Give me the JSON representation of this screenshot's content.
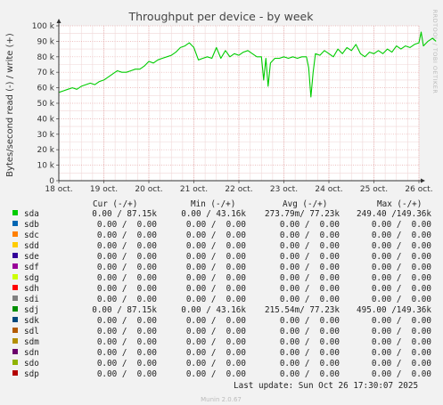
{
  "chart_data": {
    "type": "line",
    "title": "Throughput per device - by week",
    "ylabel": "Bytes/second read (-) / write (+)",
    "watermark": "RRDTOOL / TOBI OETIKER",
    "ylim": [
      0,
      100000
    ],
    "y_ticks": [
      {
        "value": 0,
        "label": "0"
      },
      {
        "value": 10000,
        "label": "10 k"
      },
      {
        "value": 20000,
        "label": "20 k"
      },
      {
        "value": 30000,
        "label": "30 k"
      },
      {
        "value": 40000,
        "label": "40 k"
      },
      {
        "value": 50000,
        "label": "50 k"
      },
      {
        "value": 60000,
        "label": "60 k"
      },
      {
        "value": 70000,
        "label": "70 k"
      },
      {
        "value": 80000,
        "label": "80 k"
      },
      {
        "value": 90000,
        "label": "90 k"
      },
      {
        "value": 100000,
        "label": "100 k"
      }
    ],
    "x_range": [
      0,
      8.4
    ],
    "x_ticks": [
      {
        "value": 0,
        "label": "18 oct."
      },
      {
        "value": 1,
        "label": "19 oct."
      },
      {
        "value": 2,
        "label": "20 oct."
      },
      {
        "value": 3,
        "label": "21 oct."
      },
      {
        "value": 4,
        "label": "22 oct."
      },
      {
        "value": 5,
        "label": "23 oct."
      },
      {
        "value": 6,
        "label": "24 oct."
      },
      {
        "value": 7,
        "label": "25 oct."
      },
      {
        "value": 8,
        "label": "26 oct."
      }
    ],
    "grid": true,
    "series": [
      {
        "name": "sda",
        "color": "#00cc00",
        "points": [
          [
            0.0,
            57000
          ],
          [
            0.1,
            58000
          ],
          [
            0.2,
            59000
          ],
          [
            0.3,
            60000
          ],
          [
            0.4,
            59000
          ],
          [
            0.5,
            61000
          ],
          [
            0.6,
            62000
          ],
          [
            0.7,
            63000
          ],
          [
            0.8,
            62000
          ],
          [
            0.9,
            64000
          ],
          [
            1.0,
            65000
          ],
          [
            1.1,
            67000
          ],
          [
            1.2,
            69000
          ],
          [
            1.3,
            71000
          ],
          [
            1.4,
            70000
          ],
          [
            1.5,
            70000
          ],
          [
            1.6,
            71000
          ],
          [
            1.7,
            72000
          ],
          [
            1.8,
            72000
          ],
          [
            1.9,
            74000
          ],
          [
            2.0,
            77000
          ],
          [
            2.1,
            76000
          ],
          [
            2.2,
            78000
          ],
          [
            2.3,
            79000
          ],
          [
            2.4,
            80000
          ],
          [
            2.5,
            81000
          ],
          [
            2.6,
            83000
          ],
          [
            2.7,
            86000
          ],
          [
            2.8,
            87000
          ],
          [
            2.9,
            89000
          ],
          [
            3.0,
            86000
          ],
          [
            3.1,
            78000
          ],
          [
            3.2,
            79000
          ],
          [
            3.3,
            80000
          ],
          [
            3.4,
            79000
          ],
          [
            3.5,
            86000
          ],
          [
            3.6,
            79000
          ],
          [
            3.7,
            84000
          ],
          [
            3.8,
            80000
          ],
          [
            3.9,
            82000
          ],
          [
            4.0,
            81000
          ],
          [
            4.1,
            83000
          ],
          [
            4.2,
            84000
          ],
          [
            4.3,
            82000
          ],
          [
            4.4,
            80000
          ],
          [
            4.5,
            80000
          ],
          [
            4.55,
            65000
          ],
          [
            4.6,
            79000
          ],
          [
            4.65,
            61000
          ],
          [
            4.7,
            76000
          ],
          [
            4.8,
            79000
          ],
          [
            4.9,
            79000
          ],
          [
            5.0,
            80000
          ],
          [
            5.1,
            79000
          ],
          [
            5.2,
            80000
          ],
          [
            5.3,
            79000
          ],
          [
            5.4,
            80000
          ],
          [
            5.5,
            80000
          ],
          [
            5.55,
            73000
          ],
          [
            5.6,
            54000
          ],
          [
            5.65,
            70000
          ],
          [
            5.7,
            82000
          ],
          [
            5.8,
            81000
          ],
          [
            5.9,
            84000
          ],
          [
            6.0,
            82000
          ],
          [
            6.1,
            80000
          ],
          [
            6.2,
            85000
          ],
          [
            6.3,
            82000
          ],
          [
            6.4,
            86000
          ],
          [
            6.5,
            84000
          ],
          [
            6.6,
            88000
          ],
          [
            6.7,
            82000
          ],
          [
            6.8,
            80000
          ],
          [
            6.9,
            83000
          ],
          [
            7.0,
            82000
          ],
          [
            7.1,
            84000
          ],
          [
            7.2,
            82000
          ],
          [
            7.3,
            85000
          ],
          [
            7.4,
            83000
          ],
          [
            7.5,
            87000
          ],
          [
            7.6,
            85000
          ],
          [
            7.7,
            87000
          ],
          [
            7.8,
            86000
          ],
          [
            7.9,
            88000
          ],
          [
            8.0,
            89000
          ],
          [
            8.05,
            96000
          ],
          [
            8.1,
            87000
          ],
          [
            8.2,
            90000
          ],
          [
            8.3,
            92000
          ],
          [
            8.38,
            90000
          ]
        ]
      }
    ]
  },
  "legend": {
    "headers": {
      "cur": "Cur (-/+)",
      "min": "Min (-/+)",
      "avg": "Avg (-/+)",
      "max": "Max (-/+)"
    },
    "rows": [
      {
        "name": "sda",
        "color": "#00cc00",
        "cur": "0.00 / 87.15k",
        "min": "0.00 / 43.16k",
        "avg": "273.79m/ 77.23k",
        "max": "249.40 /149.36k"
      },
      {
        "name": "sdb",
        "color": "#0066b3",
        "cur": "0.00 /  0.00",
        "min": "0.00 /  0.00",
        "avg": "0.00 /  0.00",
        "max": "0.00 /  0.00"
      },
      {
        "name": "sdc",
        "color": "#ff8000",
        "cur": "0.00 /  0.00",
        "min": "0.00 /  0.00",
        "avg": "0.00 /  0.00",
        "max": "0.00 /  0.00"
      },
      {
        "name": "sdd",
        "color": "#ffcc00",
        "cur": "0.00 /  0.00",
        "min": "0.00 /  0.00",
        "avg": "0.00 /  0.00",
        "max": "0.00 /  0.00"
      },
      {
        "name": "sde",
        "color": "#330099",
        "cur": "0.00 /  0.00",
        "min": "0.00 /  0.00",
        "avg": "0.00 /  0.00",
        "max": "0.00 /  0.00"
      },
      {
        "name": "sdf",
        "color": "#990099",
        "cur": "0.00 /  0.00",
        "min": "0.00 /  0.00",
        "avg": "0.00 /  0.00",
        "max": "0.00 /  0.00"
      },
      {
        "name": "sdg",
        "color": "#ccff00",
        "cur": "0.00 /  0.00",
        "min": "0.00 /  0.00",
        "avg": "0.00 /  0.00",
        "max": "0.00 /  0.00"
      },
      {
        "name": "sdh",
        "color": "#ff0000",
        "cur": "0.00 /  0.00",
        "min": "0.00 /  0.00",
        "avg": "0.00 /  0.00",
        "max": "0.00 /  0.00"
      },
      {
        "name": "sdi",
        "color": "#808080",
        "cur": "0.00 /  0.00",
        "min": "0.00 /  0.00",
        "avg": "0.00 /  0.00",
        "max": "0.00 /  0.00"
      },
      {
        "name": "sdj",
        "color": "#008f00",
        "cur": "0.00 / 87.15k",
        "min": "0.00 / 43.16k",
        "avg": "215.54m/ 77.23k",
        "max": "495.00 /149.36k"
      },
      {
        "name": "sdk",
        "color": "#00487d",
        "cur": "0.00 /  0.00",
        "min": "0.00 /  0.00",
        "avg": "0.00 /  0.00",
        "max": "0.00 /  0.00"
      },
      {
        "name": "sdl",
        "color": "#b35a00",
        "cur": "0.00 /  0.00",
        "min": "0.00 /  0.00",
        "avg": "0.00 /  0.00",
        "max": "0.00 /  0.00"
      },
      {
        "name": "sdm",
        "color": "#b38f00",
        "cur": "0.00 /  0.00",
        "min": "0.00 /  0.00",
        "avg": "0.00 /  0.00",
        "max": "0.00 /  0.00"
      },
      {
        "name": "sdn",
        "color": "#6b006b",
        "cur": "0.00 /  0.00",
        "min": "0.00 /  0.00",
        "avg": "0.00 /  0.00",
        "max": "0.00 /  0.00"
      },
      {
        "name": "sdo",
        "color": "#8fb300",
        "cur": "0.00 /  0.00",
        "min": "0.00 /  0.00",
        "avg": "0.00 /  0.00",
        "max": "0.00 /  0.00"
      },
      {
        "name": "sdp",
        "color": "#b30000",
        "cur": "0.00 /  0.00",
        "min": "0.00 /  0.00",
        "avg": "0.00 /  0.00",
        "max": "0.00 /  0.00"
      }
    ]
  },
  "last_update": "Last update: Sun Oct 26 17:30:07 2025",
  "footer": "Munin 2.0.67"
}
